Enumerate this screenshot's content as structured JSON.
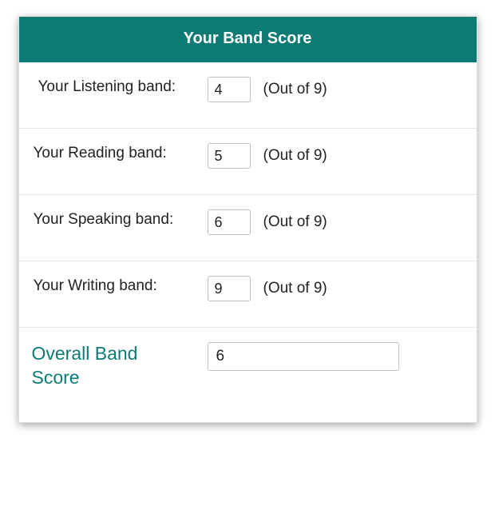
{
  "header": {
    "title": "Your Band Score",
    "background_color": "#0d7a73",
    "text_color": "#ffffff",
    "font_size": 20
  },
  "rows": [
    {
      "label": "Your Listening band:",
      "value": "4",
      "hint": "(Out of 9)",
      "indent": true
    },
    {
      "label": "Your Reading band:",
      "value": "5",
      "hint": "(Out of 9)",
      "indent": false
    },
    {
      "label": "Your Speaking band:",
      "value": "6",
      "hint": "(Out of 9)",
      "indent": false
    },
    {
      "label": "Your Writing band:",
      "value": "9",
      "hint": "(Out of 9)",
      "indent": false
    }
  ],
  "overall": {
    "label": "Overall Band Score",
    "value": "6",
    "label_color": "#0d7a73",
    "label_fontsize": 23
  },
  "style": {
    "card_border_color": "#e0e0e0",
    "row_border_color": "#e6e6e6",
    "input_border_color": "#bfbfbf",
    "text_color": "#222222",
    "background_color": "#ffffff",
    "label_fontsize": 19,
    "hint_fontsize": 19
  }
}
